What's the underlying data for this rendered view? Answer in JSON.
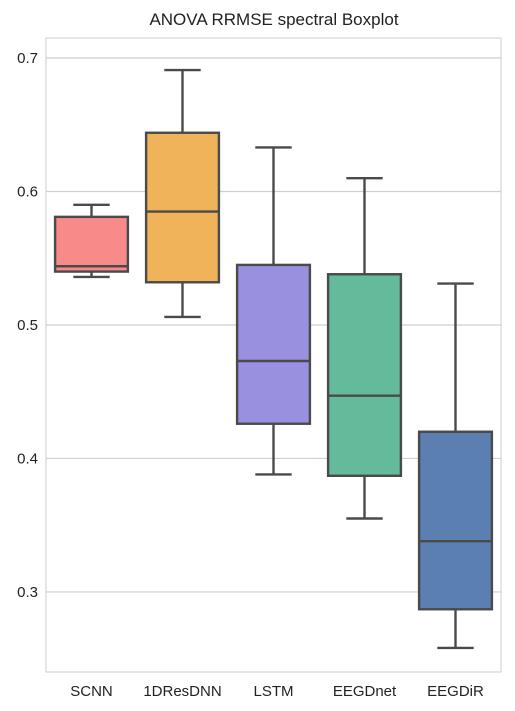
{
  "chart_data": {
    "type": "box",
    "title": "ANOVA RRMSE spectral Boxplot",
    "xlabel": "",
    "ylabel": "",
    "ylim": [
      0.24,
      0.715
    ],
    "yticks": [
      0.3,
      0.4,
      0.5,
      0.6,
      0.7
    ],
    "ytick_labels": [
      "0.3",
      "0.4",
      "0.5",
      "0.6",
      "0.7"
    ],
    "grid": "horizontal",
    "categories": [
      "SCNN",
      "1DResDNN",
      "LSTM",
      "EEGDnet",
      "EEGDiR"
    ],
    "boxes": [
      {
        "name": "SCNN",
        "whislo": 0.536,
        "q1": 0.54,
        "median": 0.544,
        "q3": 0.581,
        "whishi": 0.59,
        "color": "#f98a8a"
      },
      {
        "name": "1DResDNN",
        "whislo": 0.506,
        "q1": 0.532,
        "median": 0.585,
        "q3": 0.644,
        "whishi": 0.691,
        "color": "#f0b35a"
      },
      {
        "name": "LSTM",
        "whislo": 0.388,
        "q1": 0.426,
        "median": 0.473,
        "q3": 0.545,
        "whishi": 0.633,
        "color": "#9990e0"
      },
      {
        "name": "EEGDnet",
        "whislo": 0.355,
        "q1": 0.387,
        "median": 0.447,
        "q3": 0.538,
        "whishi": 0.61,
        "color": "#64bb9b"
      },
      {
        "name": "EEGDiR",
        "whislo": 0.258,
        "q1": 0.287,
        "median": 0.338,
        "q3": 0.42,
        "whishi": 0.531,
        "color": "#5b7fb0"
      }
    ]
  },
  "colors": {
    "grid": "#cfcfcf",
    "axes_edge": "#cccccc",
    "line": "#4a4a4a",
    "text": "#222222"
  }
}
